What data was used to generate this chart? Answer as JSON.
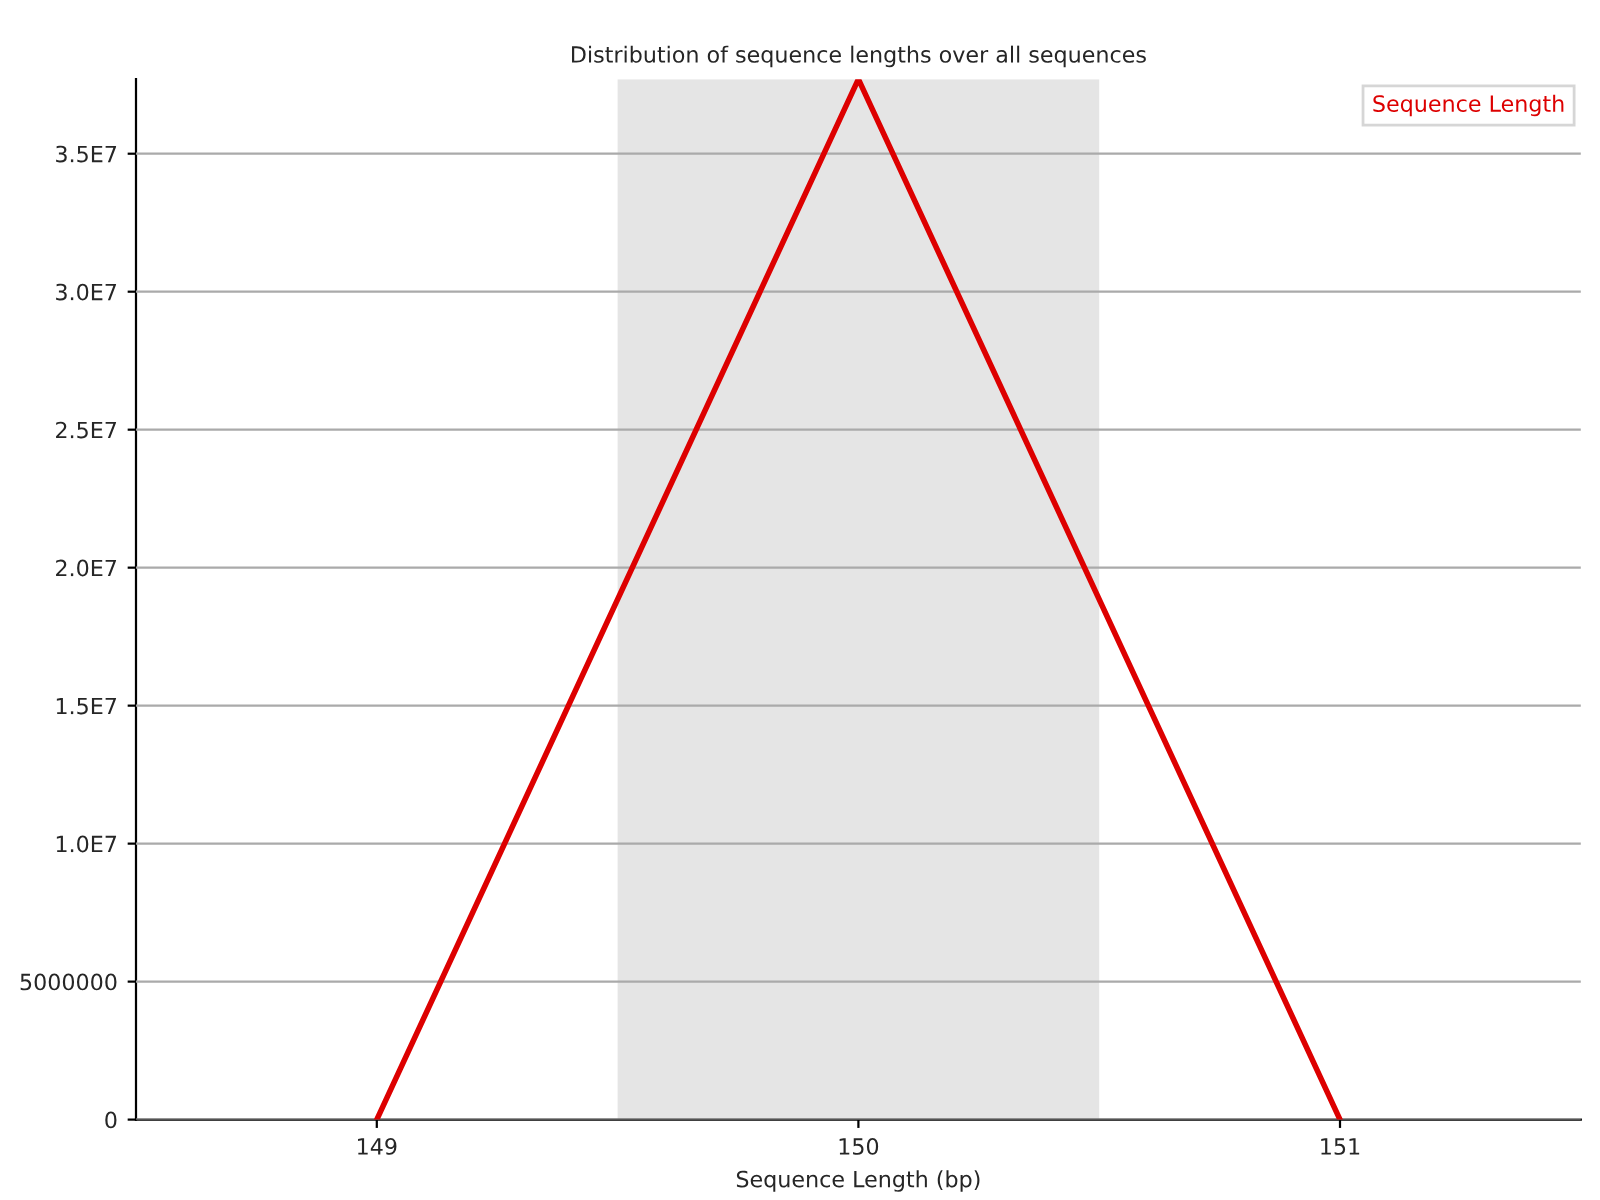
{
  "chart_data": {
    "type": "line",
    "title": "Distribution of sequence lengths over all sequences",
    "xlabel": "Sequence Length (bp)",
    "x": [
      149,
      150,
      151
    ],
    "series": [
      {
        "name": "Sequence Length",
        "color": "#dd0000",
        "values": [
          0,
          37700000,
          0
        ]
      }
    ],
    "xlim": [
      148.5,
      151.5
    ],
    "xticks": [
      149,
      150,
      151
    ],
    "ylim": [
      0,
      37700000
    ],
    "yticks": [
      0,
      5000000,
      {
        "value": 10000000,
        "label": "1.0E7"
      },
      {
        "value": 15000000,
        "label": "1.5E7"
      },
      {
        "value": 20000000,
        "label": "2.0E7"
      },
      {
        "value": 25000000,
        "label": "2.5E7"
      },
      {
        "value": 30000000,
        "label": "3.0E7"
      },
      {
        "value": 35000000,
        "label": "3.5E7"
      }
    ],
    "bands": [
      {
        "axis": "x",
        "from": 149.5,
        "to": 150.5,
        "color": "#e5e5e5"
      }
    ],
    "grid": "y",
    "legend": "top right",
    "marker": "none",
    "line_style": "solid"
  }
}
